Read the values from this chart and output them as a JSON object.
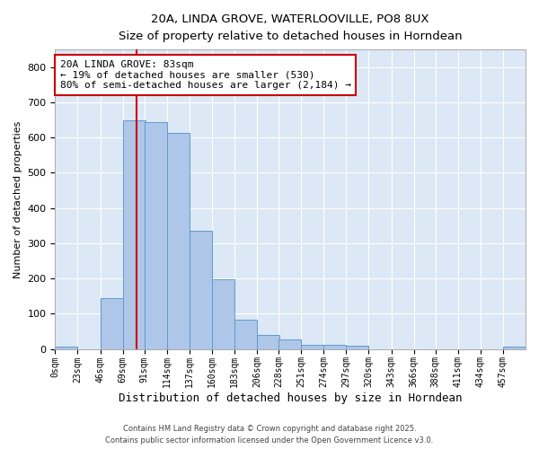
{
  "title_line1": "20A, LINDA GROVE, WATERLOOVILLE, PO8 8UX",
  "title_line2": "Size of property relative to detached houses in Horndean",
  "xlabel": "Distribution of detached houses by size in Horndean",
  "ylabel": "Number of detached properties",
  "bin_labels": [
    "0sqm",
    "23sqm",
    "46sqm",
    "69sqm",
    "91sqm",
    "114sqm",
    "137sqm",
    "160sqm",
    "183sqm",
    "206sqm",
    "228sqm",
    "251sqm",
    "274sqm",
    "297sqm",
    "320sqm",
    "343sqm",
    "366sqm",
    "388sqm",
    "411sqm",
    "434sqm",
    "457sqm"
  ],
  "bin_edges": [
    0,
    23,
    46,
    69,
    91,
    114,
    137,
    160,
    183,
    206,
    228,
    251,
    274,
    297,
    320,
    343,
    366,
    388,
    411,
    434,
    457
  ],
  "bar_heights": [
    7,
    0,
    143,
    650,
    645,
    612,
    335,
    198,
    83,
    40,
    26,
    12,
    12,
    9,
    0,
    0,
    0,
    0,
    0,
    0,
    7
  ],
  "bar_color": "#aec6e8",
  "bar_edge_color": "#5b9bd5",
  "red_line_x": 83,
  "annotation_text": "20A LINDA GROVE: 83sqm\n← 19% of detached houses are smaller (530)\n80% of semi-detached houses are larger (2,184) →",
  "annotation_box_color": "#ffffff",
  "annotation_box_edge_color": "#cc0000",
  "ylim": [
    0,
    850
  ],
  "yticks": [
    0,
    100,
    200,
    300,
    400,
    500,
    600,
    700,
    800
  ],
  "background_color": "#dce8f5",
  "footer_line1": "Contains HM Land Registry data © Crown copyright and database right 2025.",
  "footer_line2": "Contains public sector information licensed under the Open Government Licence v3.0."
}
